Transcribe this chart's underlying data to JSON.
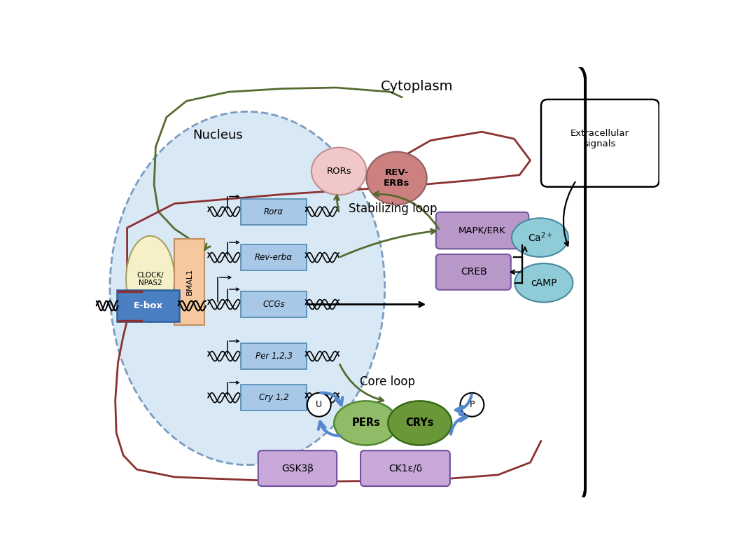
{
  "bg_color": "#ffffff",
  "nucleus_color": "#d8e8f5",
  "nucleus_border": "#7a9cc0",
  "ebox_color": "#4a7fc1",
  "clock_npas2_color": "#f5f0c8",
  "bmal1_color": "#f5c8a0",
  "gene_box_color": "#a8c8e8",
  "rors_color": "#f0c8c8",
  "reverbs_color": "#cc8080",
  "pers_color": "#90bc68",
  "crys_color": "#6a9838",
  "gsk3b_color": "#c8a8d8",
  "ck1_color": "#c8a8d8",
  "mapkerk_color": "#b898c8",
  "creb_color": "#b898c8",
  "ca2_color": "#90ccd8",
  "camp_color": "#90ccd8",
  "arrow_green": "#556b2f",
  "arrow_red": "#8b3030",
  "arrow_blue": "#5588cc",
  "cytoplasm_label": "Cytoplasm",
  "nucleus_label": "Nucleus",
  "extracellular_label": "Extracellular\nsignals",
  "stabilizing_loop_label": "Stabilizing loop",
  "core_loop_label": "Core loop",
  "rors_label": "RORs",
  "reverbs_label": "REV-\nERBs",
  "clock_label": "CLOCK/\nNPAS2",
  "bmal1_label": "BMAL1",
  "ebox_label": "E-box",
  "pers_label": "PERs",
  "crys_label": "CRYs",
  "gsk3b_label": "GSK3β",
  "ck1_label": "CK1ε/δ",
  "mapkerk_label": "MAPK/ERK",
  "creb_label": "CREB",
  "ca2_label": "Ca$^{2+}$",
  "camp_label": "cAMP",
  "gene_labels": [
    "Rorα",
    "Rev-erbα",
    "CCGs",
    "Per 1,2,3",
    "Cry 1,2"
  ],
  "gene_y": [
    5.3,
    4.45,
    3.58,
    2.62,
    1.85
  ],
  "u_label": "U",
  "p_label": "P"
}
